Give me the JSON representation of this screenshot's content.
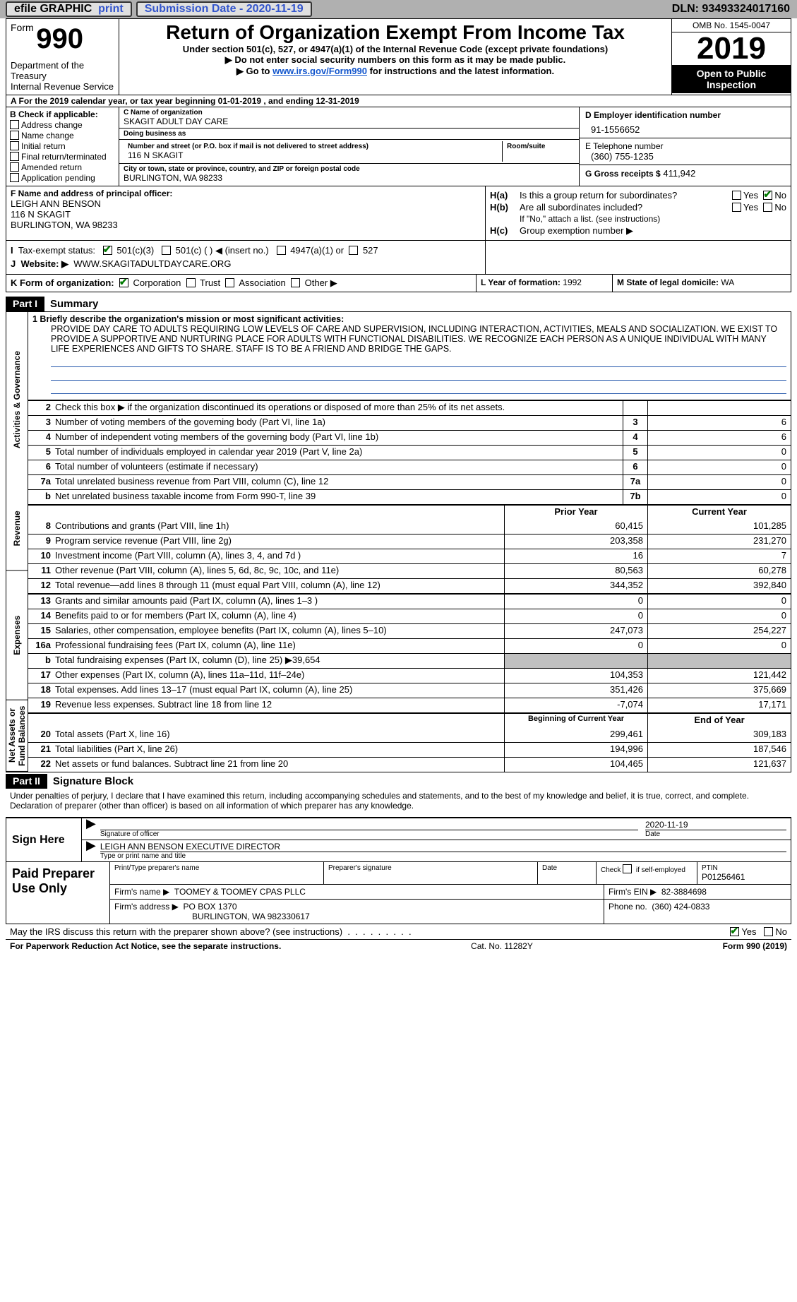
{
  "topbar": {
    "efile": "efile GRAPHIC",
    "print_label": "print",
    "submission_label": "Submission Date - 2020-11-19",
    "dln_label": "DLN: 93493324017160"
  },
  "header": {
    "form_word": "Form",
    "form_num": "990",
    "dept1": "Department of the Treasury",
    "dept2": "Internal Revenue Service",
    "title": "Return of Organization Exempt From Income Tax",
    "sub1": "Under section 501(c), 527, or 4947(a)(1) of the Internal Revenue Code (except private foundations)",
    "sub2": "▶ Do not enter social security numbers on this form as it may be made public.",
    "sub3_pre": "▶ Go to ",
    "sub3_link": "www.irs.gov/Form990",
    "sub3_post": " for instructions and the latest information.",
    "omb": "OMB No. 1545-0047",
    "year": "2019",
    "open_public": "Open to Public Inspection"
  },
  "A": {
    "text": "A For the 2019 calendar year, or tax year beginning 01-01-2019    , and ending 12-31-2019"
  },
  "B": {
    "title": "B Check if applicable:",
    "items": [
      "Address change",
      "Name change",
      "Initial return",
      "Final return/terminated",
      "Amended return",
      "Application pending"
    ]
  },
  "C": {
    "label_name": "C Name of organization",
    "org_name": "SKAGIT ADULT DAY CARE",
    "dba_label": "Doing business as",
    "dba": "",
    "addr_label": "Number and street (or P.O. box if mail is not delivered to street address)",
    "addr": "116 N SKAGIT",
    "room_label": "Room/suite",
    "city_label": "City or town, state or province, country, and ZIP or foreign postal code",
    "city": "BURLINGTON, WA  98233"
  },
  "D": {
    "label": "D Employer identification number",
    "ein": "91-1556652"
  },
  "E": {
    "label": "E Telephone number",
    "phone": "(360) 755-1235"
  },
  "G": {
    "label": "G Gross receipts $",
    "val": "411,942"
  },
  "F": {
    "label": "F  Name and address of principal officer:",
    "name": "LEIGH ANN BENSON",
    "addr1": "116 N SKAGIT",
    "addr2": "BURLINGTON, WA  98233"
  },
  "H": {
    "a": "Is this a group return for subordinates?",
    "b": "Are all subordinates included?",
    "b_note": "If \"No,\" attach a list. (see instructions)",
    "c": "Group exemption number ▶",
    "yes": "Yes",
    "no": "No"
  },
  "I": {
    "label": "Tax-exempt status:",
    "c3": "501(c)(3)",
    "c": "501(c) (   ) ◀ (insert no.)",
    "a1": "4947(a)(1) or",
    "s527": "527"
  },
  "J": {
    "label": "Website: ▶",
    "val": "WWW.SKAGITADULTDAYCARE.ORG"
  },
  "K": {
    "label": "K Form of organization:",
    "opts": [
      "Corporation",
      "Trust",
      "Association",
      "Other ▶"
    ]
  },
  "L": {
    "label": "L Year of formation:",
    "val": "1992"
  },
  "M": {
    "label": "M State of legal domicile:",
    "val": "WA"
  },
  "part1": {
    "tab": "Part I",
    "title": "Summary"
  },
  "mission": {
    "q": "1  Briefly describe the organization's mission or most significant activities:",
    "text": "PROVIDE DAY CARE TO ADULTS REQUIRING LOW LEVELS OF CARE AND SUPERVISION, INCLUDING INTERACTION, ACTIVITIES, MEALS AND SOCIALIZATION. WE EXIST TO PROVIDE A SUPPORTIVE AND NURTURING PLACE FOR ADULTS WITH FUNCTIONAL DISABILITIES. WE RECOGNIZE EACH PERSON AS A UNIQUE INDIVIDUAL WITH MANY LIFE EXPERIENCES AND GIFTS TO SHARE. STAFF IS TO BE A FRIEND AND BRIDGE THE GAPS."
  },
  "gov_rows": [
    {
      "n": "2",
      "d": "Check this box ▶     if the organization discontinued its operations or disposed of more than 25% of its net assets.",
      "k": "",
      "v": ""
    },
    {
      "n": "3",
      "d": "Number of voting members of the governing body (Part VI, line 1a)",
      "k": "3",
      "v": "6"
    },
    {
      "n": "4",
      "d": "Number of independent voting members of the governing body (Part VI, line 1b)",
      "k": "4",
      "v": "6"
    },
    {
      "n": "5",
      "d": "Total number of individuals employed in calendar year 2019 (Part V, line 2a)",
      "k": "5",
      "v": "0"
    },
    {
      "n": "6",
      "d": "Total number of volunteers (estimate if necessary)",
      "k": "6",
      "v": "0"
    },
    {
      "n": "7a",
      "d": "Total unrelated business revenue from Part VIII, column (C), line 12",
      "k": "7a",
      "v": "0"
    },
    {
      "n": "b",
      "d": "Net unrelated business taxable income from Form 990-T, line 39",
      "k": "7b",
      "v": "0"
    }
  ],
  "col_hdr": {
    "prior": "Prior Year",
    "current": "Current Year",
    "begin": "Beginning of Current Year",
    "end": "End of Year"
  },
  "rev_rows": [
    {
      "n": "8",
      "d": "Contributions and grants (Part VIII, line 1h)",
      "p": "60,415",
      "c": "101,285"
    },
    {
      "n": "9",
      "d": "Program service revenue (Part VIII, line 2g)",
      "p": "203,358",
      "c": "231,270"
    },
    {
      "n": "10",
      "d": "Investment income (Part VIII, column (A), lines 3, 4, and 7d )",
      "p": "16",
      "c": "7"
    },
    {
      "n": "11",
      "d": "Other revenue (Part VIII, column (A), lines 5, 6d, 8c, 9c, 10c, and 11e)",
      "p": "80,563",
      "c": "60,278"
    },
    {
      "n": "12",
      "d": "Total revenue—add lines 8 through 11 (must equal Part VIII, column (A), line 12)",
      "p": "344,352",
      "c": "392,840"
    }
  ],
  "exp_rows": [
    {
      "n": "13",
      "d": "Grants and similar amounts paid (Part IX, column (A), lines 1–3 )",
      "p": "0",
      "c": "0"
    },
    {
      "n": "14",
      "d": "Benefits paid to or for members (Part IX, column (A), line 4)",
      "p": "0",
      "c": "0"
    },
    {
      "n": "15",
      "d": "Salaries, other compensation, employee benefits (Part IX, column (A), lines 5–10)",
      "p": "247,073",
      "c": "254,227"
    },
    {
      "n": "16a",
      "d": "Professional fundraising fees (Part IX, column (A), line 11e)",
      "p": "0",
      "c": "0"
    },
    {
      "n": "b",
      "d": "Total fundraising expenses (Part IX, column (D), line 25) ▶39,654",
      "p": "",
      "c": "",
      "grey": true
    },
    {
      "n": "17",
      "d": "Other expenses (Part IX, column (A), lines 11a–11d, 11f–24e)",
      "p": "104,353",
      "c": "121,442"
    },
    {
      "n": "18",
      "d": "Total expenses. Add lines 13–17 (must equal Part IX, column (A), line 25)",
      "p": "351,426",
      "c": "375,669"
    },
    {
      "n": "19",
      "d": "Revenue less expenses. Subtract line 18 from line 12",
      "p": "-7,074",
      "c": "17,171"
    }
  ],
  "na_rows": [
    {
      "n": "20",
      "d": "Total assets (Part X, line 16)",
      "p": "299,461",
      "c": "309,183"
    },
    {
      "n": "21",
      "d": "Total liabilities (Part X, line 26)",
      "p": "194,996",
      "c": "187,546"
    },
    {
      "n": "22",
      "d": "Net assets or fund balances. Subtract line 21 from line 20",
      "p": "104,465",
      "c": "121,637"
    }
  ],
  "side_labels": {
    "gov": "Activities & Governance",
    "rev": "Revenue",
    "exp": "Expenses",
    "na": "Net Assets or Fund Balances"
  },
  "part2": {
    "tab": "Part II",
    "title": "Signature Block"
  },
  "decl": "Under penalties of perjury, I declare that I have examined this return, including accompanying schedules and statements, and to the best of my knowledge and belief, it is true, correct, and complete. Declaration of preparer (other than officer) is based on all information of which preparer has any knowledge.",
  "sign": {
    "here": "Sign Here",
    "sig_label": "Signature of officer",
    "date": "2020-11-19",
    "date_label": "Date",
    "name": "LEIGH ANN BENSON  EXECUTIVE DIRECTOR",
    "name_label": "Type or print name and title"
  },
  "prep": {
    "title": "Paid Preparer Use Only",
    "print_label": "Print/Type preparer's name",
    "psig_label": "Preparer's signature",
    "pdate_label": "Date",
    "check_label": "Check           if self-employed",
    "ptin_label": "PTIN",
    "ptin": "P01256461",
    "firm_name_label": "Firm's name    ▶",
    "firm_name": "TOOMEY & TOOMEY CPAS PLLC",
    "firm_ein_label": "Firm's EIN ▶",
    "firm_ein": "82-3884698",
    "firm_addr_label": "Firm's address ▶",
    "firm_addr": "PO BOX 1370",
    "firm_city": "BURLINGTON, WA  982330617",
    "firm_phone_label": "Phone no.",
    "firm_phone": "(360) 424-0833"
  },
  "discuss": {
    "q": "May the IRS discuss this return with the preparer shown above? (see instructions)",
    "yes": "Yes",
    "no": "No"
  },
  "bottom": {
    "left": "For Paperwork Reduction Act Notice, see the separate instructions.",
    "mid": "Cat. No. 11282Y",
    "right": "Form 990 (2019)"
  },
  "colors": {
    "link": "#1155cc",
    "grey": "#c0c0c0",
    "greenChk": "#007a00"
  }
}
